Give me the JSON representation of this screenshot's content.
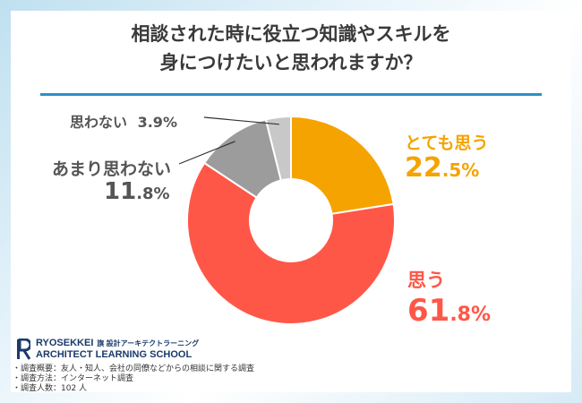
{
  "title_lines": [
    "相談された時に役立つ知識やスキルを",
    "身につけたいと思われますか？"
  ],
  "colors": {
    "accent_line": "#2b8fc8",
    "orange": "#f5a300",
    "red": "#ff5747",
    "gray": "#9c9c9c",
    "lightgray": "#c8c8c8",
    "logo": "#1a3a6b"
  },
  "chart_data": {
    "type": "pie",
    "variant": "donut",
    "title": "相談された時に役立つ知識やスキルを身につけたいと思われますか？",
    "slices": [
      {
        "label": "とても思う",
        "value": 22.5,
        "pct_int": "22",
        "pct_dec": ".5%",
        "color": "#f5a300"
      },
      {
        "label": "思う",
        "value": 61.8,
        "pct_int": "61",
        "pct_dec": ".8%",
        "color": "#ff5747"
      },
      {
        "label": "あまり思わない",
        "value": 11.8,
        "pct_int": "11",
        "pct_dec": ".8%",
        "color": "#9c9c9c"
      },
      {
        "label": "思わない",
        "value": 3.9,
        "pct_text": "3.9%",
        "color": "#c8c8c8"
      }
    ]
  },
  "logo": {
    "name": "RYOSEKKEI",
    "jp": "旗 設計アーキテクトラーニング",
    "school": "ARCHITECT LEARNING SCHOOL"
  },
  "notes": [
    "・調査概要：友人・知人、会社の同僚などからの相談に関する調査",
    "・調査方法：インターネット調査",
    "・調査人数：102 人"
  ]
}
